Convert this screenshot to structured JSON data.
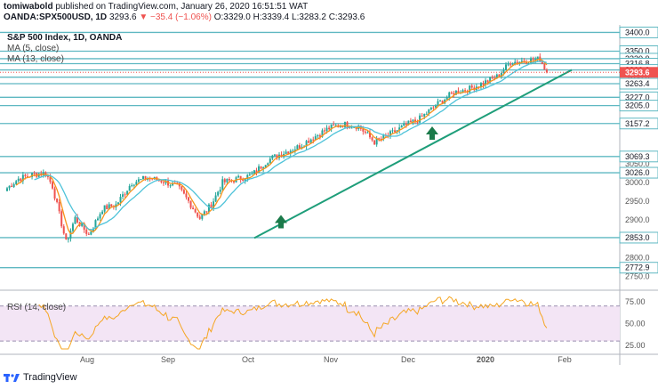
{
  "header": {
    "author": "tomiwabold",
    "published": "published on TradingView.com, January 26, 2020 16:51:51 WAT",
    "symbol": "OANDA:SPX500USD, 1D",
    "last": "3293.6",
    "change": "▼ −35.4 (−1.06%)",
    "ohlc": "O:3329.0 H:3339.4 L:3283.2 C:3293.6"
  },
  "legend": {
    "title": "S&P 500 Index, 1D, OANDA",
    "ma5": "MA (5, close)",
    "ma13": "MA (13, close)"
  },
  "rsi": {
    "label": "RSI (14, close)"
  },
  "footer": {
    "brand": "TradingView"
  },
  "colors": {
    "up": "#26a69a",
    "down": "#ef5350",
    "ma5": "#f7931a",
    "ma13": "#4fc3d9",
    "level": "#5fb8c2",
    "trend": "#1f9e7a",
    "price_tag": "#ef5350",
    "rsi_line": "#f5a623",
    "rsi_band": "#f3e5f5"
  },
  "chart_data": {
    "type": "candlestick",
    "price_axis": {
      "ylim": [
        2720,
        3420
      ],
      "ticks": [
        {
          "v": 2750,
          "label": "2750.0"
        },
        {
          "v": 2800,
          "label": "2800.0"
        },
        {
          "v": 2900,
          "label": "2900.0"
        },
        {
          "v": 2950,
          "label": "2950.0"
        },
        {
          "v": 3000,
          "label": "3000.0"
        },
        {
          "v": 3050,
          "label": "3050.0"
        }
      ],
      "levels": [
        {
          "v": 3400.0,
          "label": "3400.0"
        },
        {
          "v": 3350.0,
          "label": "3350.0"
        },
        {
          "v": 3330.0,
          "label": "3330.0"
        },
        {
          "v": 3316.8,
          "label": "3316.8"
        },
        {
          "v": 3300.0,
          "label": "3300.0"
        },
        {
          "v": 3280.8,
          "label": "3280.8"
        },
        {
          "v": 3263.4,
          "label": "3263.4"
        },
        {
          "v": 3227.0,
          "label": "3227.0"
        },
        {
          "v": 3205.0,
          "label": "3205.0"
        },
        {
          "v": 3157.2,
          "label": "3157.2"
        },
        {
          "v": 3069.3,
          "label": "3069.3"
        },
        {
          "v": 3026.0,
          "label": "3026.0"
        },
        {
          "v": 2853.0,
          "label": "2853.0"
        },
        {
          "v": 2772.9,
          "label": "2772.9"
        }
      ],
      "current": {
        "v": 3293.6,
        "label": "3293.6"
      }
    },
    "time_axis": [
      "Aug",
      "Sep",
      "Oct",
      "Nov",
      "Dec",
      "2020",
      "Feb"
    ],
    "trendline": [
      {
        "day": 0,
        "price": 2852
      },
      {
        "day": 240,
        "price": 3300
      }
    ],
    "arrows": [
      {
        "day": 15,
        "price": 2892
      },
      {
        "day": 91,
        "price": 3128
      }
    ],
    "ohlc_start": 2977,
    "ohlc_targets": [
      [
        0,
        2985
      ],
      [
        5,
        3010
      ],
      [
        12,
        3022
      ],
      [
        17,
        3025
      ],
      [
        20,
        2990
      ],
      [
        26,
        2840
      ],
      [
        30,
        2905
      ],
      [
        36,
        2860
      ],
      [
        42,
        2930
      ],
      [
        48,
        2940
      ],
      [
        55,
        3000
      ],
      [
        62,
        3012
      ],
      [
        68,
        3005
      ],
      [
        75,
        2990
      ],
      [
        80,
        2950
      ],
      [
        85,
        2905
      ],
      [
        90,
        2940
      ],
      [
        95,
        3000
      ],
      [
        102,
        3010
      ],
      [
        108,
        3020
      ],
      [
        115,
        3060
      ],
      [
        122,
        3080
      ],
      [
        128,
        3094
      ],
      [
        135,
        3120
      ],
      [
        142,
        3145
      ],
      [
        148,
        3155
      ],
      [
        155,
        3150
      ],
      [
        162,
        3108
      ],
      [
        168,
        3125
      ],
      [
        175,
        3150
      ],
      [
        182,
        3170
      ],
      [
        190,
        3210
      ],
      [
        197,
        3240
      ],
      [
        204,
        3250
      ],
      [
        210,
        3265
      ],
      [
        216,
        3282
      ],
      [
        222,
        3320
      ],
      [
        228,
        3325
      ],
      [
        235,
        3329
      ],
      [
        238,
        3293.6
      ]
    ],
    "ma_periods": [
      5,
      13
    ],
    "rsi": {
      "ylim": [
        20,
        82
      ],
      "ticks": [
        {
          "v": 75,
          "label": "75.00"
        },
        {
          "v": 50,
          "label": "50.00"
        },
        {
          "v": 25,
          "label": "25.00"
        }
      ],
      "band": [
        30,
        70
      ],
      "last": 56
    }
  }
}
